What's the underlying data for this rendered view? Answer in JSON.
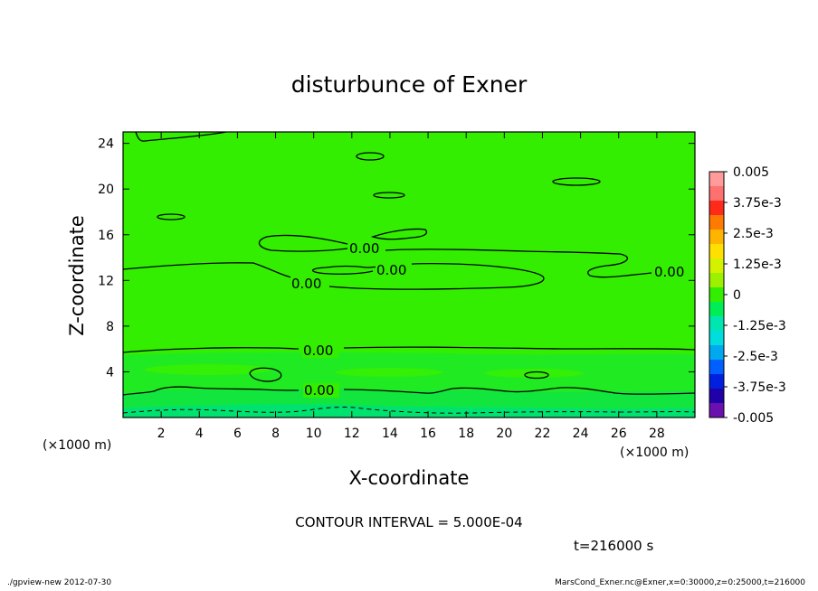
{
  "chart_data": {
    "type": "heatmap",
    "title": "disturbunce of Exner",
    "xlabel": "X-coordinate",
    "ylabel": "Z-coordinate",
    "x_unit": "(×1000 m)",
    "y_unit": "(×1000 m)",
    "xlim": [
      0,
      30
    ],
    "ylim": [
      0,
      25
    ],
    "x_ticks": [
      2,
      4,
      6,
      8,
      10,
      12,
      14,
      16,
      18,
      20,
      22,
      24,
      26,
      28
    ],
    "y_ticks": [
      4,
      8,
      12,
      16,
      20,
      24
    ],
    "colorbar": {
      "labels": [
        "0.005",
        "3.75e-3",
        "2.5e-3",
        "1.25e-3",
        "0",
        "-1.25e-3",
        "-2.5e-3",
        "-3.75e-3",
        "-0.005"
      ],
      "colors": [
        "#ff9b9b",
        "#ff7070",
        "#ff2a1a",
        "#ff7a00",
        "#ffb400",
        "#ffe000",
        "#d2f200",
        "#9cf000",
        "#33ee00",
        "#00ee55",
        "#00e6b0",
        "#00dddd",
        "#00a8f0",
        "#0060ff",
        "#0020e0",
        "#2000a8",
        "#6a10b0"
      ]
    },
    "contour_labels": [
      "0.00",
      "0.00",
      "0.00",
      "0.00",
      "0.00",
      "0.00"
    ],
    "contour_interval": "CONTOUR INTERVAL = 5.000E-04",
    "time": "t=216000 s"
  },
  "footer": {
    "left": "./gpview-new  2012-07-30",
    "right": "MarsCond_Exner.nc@Exner,x=0:30000,z=0:25000,t=216000"
  }
}
